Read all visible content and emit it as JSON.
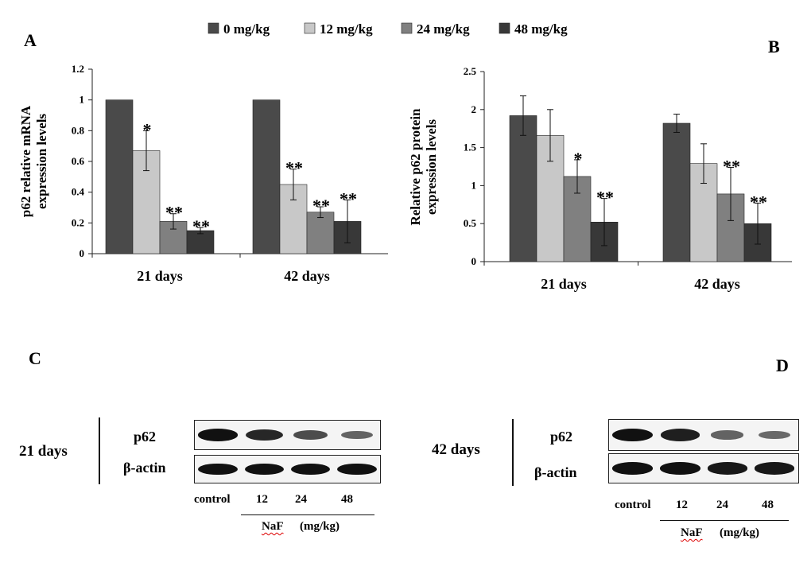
{
  "legend": [
    {
      "label": "0 mg/kg",
      "color": "#4a4a4a"
    },
    {
      "label": "12 mg/kg",
      "color": "#c8c8c8"
    },
    {
      "label": "24 mg/kg",
      "color": "#808080"
    },
    {
      "label": "48 mg/kg",
      "color": "#383838"
    }
  ],
  "chart_data": [
    {
      "panel": "A",
      "type": "bar",
      "title": "",
      "xlabel": "",
      "ylabel": "p62 relative mRNA expression levels",
      "ylabel_lines": [
        "p62 relative mRNA",
        "expression levels"
      ],
      "ylim": [
        0,
        1.2
      ],
      "yticks": [
        "0",
        "0.2",
        "0.4",
        "0.6",
        "0.8",
        "1",
        "1.2"
      ],
      "categories": [
        "21 days",
        "42 days"
      ],
      "series": [
        {
          "name": "0 mg/kg",
          "values": [
            1.0,
            1.0
          ],
          "errors": [
            0,
            0
          ],
          "sig": [
            "",
            ""
          ]
        },
        {
          "name": "12 mg/kg",
          "values": [
            0.67,
            0.45
          ],
          "errors": [
            0.13,
            0.1
          ],
          "sig": [
            "*",
            "**"
          ]
        },
        {
          "name": "24 mg/kg",
          "values": [
            0.21,
            0.27
          ],
          "errors": [
            0.05,
            0.035
          ],
          "sig": [
            "**",
            "**"
          ]
        },
        {
          "name": "48 mg/kg",
          "values": [
            0.15,
            0.21
          ],
          "errors": [
            0.02,
            0.14
          ],
          "sig": [
            "**",
            "**"
          ]
        }
      ]
    },
    {
      "panel": "B",
      "type": "bar",
      "title": "",
      "xlabel": "",
      "ylabel": "Relative p62 protein expression levels",
      "ylabel_lines": [
        "Relative p62 protein",
        "expression levels"
      ],
      "ylim": [
        0,
        2.5
      ],
      "yticks": [
        "0",
        "0.5",
        "1",
        "1.5",
        "2",
        "2.5"
      ],
      "categories": [
        "21 days",
        "42 days"
      ],
      "series": [
        {
          "name": "0 mg/kg",
          "values": [
            1.92,
            1.82
          ],
          "errors": [
            0.26,
            0.12
          ],
          "sig": [
            "",
            ""
          ]
        },
        {
          "name": "12 mg/kg",
          "values": [
            1.66,
            1.29
          ],
          "errors": [
            0.34,
            0.26
          ],
          "sig": [
            "",
            ""
          ]
        },
        {
          "name": "24 mg/kg",
          "values": [
            1.12,
            0.89
          ],
          "errors": [
            0.22,
            0.35
          ],
          "sig": [
            "*",
            "**"
          ]
        },
        {
          "name": "48 mg/kg",
          "values": [
            0.52,
            0.5
          ],
          "errors": [
            0.31,
            0.27
          ],
          "sig": [
            "**",
            "**"
          ]
        }
      ]
    }
  ],
  "blots": {
    "C": {
      "letter": "C",
      "day_label": "21 days",
      "row1": "p62",
      "row2": "β-actin",
      "lanes": [
        "control",
        "12",
        "24",
        "48"
      ],
      "naf": "NaF",
      "unit": "(mg/kg)",
      "p62_intensity": [
        1.0,
        0.85,
        0.6,
        0.45
      ],
      "actin_intensity": [
        1.0,
        1.0,
        1.0,
        1.0
      ]
    },
    "D": {
      "letter": "D",
      "day_label": "42 days",
      "row1": "p62",
      "row2": "β-actin",
      "lanes": [
        "control",
        "12",
        "24",
        "48"
      ],
      "naf": "NaF",
      "unit": "(mg/kg)",
      "p62_intensity": [
        1.0,
        0.9,
        0.45,
        0.4
      ],
      "actin_intensity": [
        1.0,
        1.0,
        0.95,
        0.95
      ]
    }
  }
}
